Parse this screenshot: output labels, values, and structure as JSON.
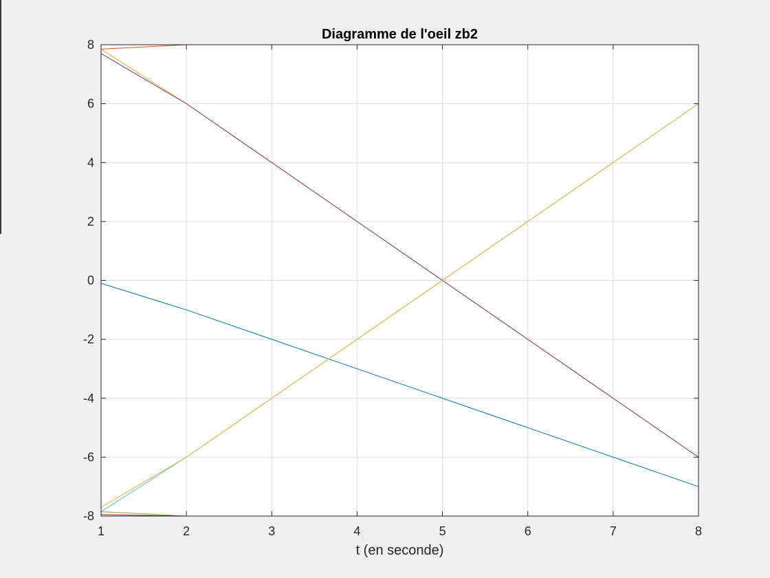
{
  "chart_data": {
    "type": "line",
    "title": "Diagramme de l'oeil zb2",
    "xlabel": "t (en seconde)",
    "ylabel": "",
    "xlim": [
      1,
      8
    ],
    "ylim": [
      -8,
      8
    ],
    "xticks": [
      1,
      2,
      3,
      4,
      5,
      6,
      7,
      8
    ],
    "yticks": [
      -8,
      -6,
      -4,
      -2,
      0,
      2,
      4,
      6,
      8
    ],
    "grid": true,
    "legend": "none",
    "series": [
      {
        "color": "#0072bd",
        "x": [
          1,
          2,
          3,
          4,
          5,
          6,
          7,
          8
        ],
        "y": [
          -0.1,
          -1,
          -2,
          -3,
          -4,
          -5,
          -6,
          -7
        ]
      },
      {
        "color": "#d95319",
        "x": [
          1,
          2,
          3,
          4,
          5,
          6,
          7,
          8
        ],
        "y": [
          7.85,
          8,
          8,
          8,
          8,
          8,
          8,
          8
        ]
      },
      {
        "color": "#edb120",
        "x": [
          1,
          2,
          3,
          4,
          5,
          6,
          7,
          8
        ],
        "y": [
          7.85,
          6,
          4,
          2,
          0,
          -2,
          -4,
          -6
        ]
      },
      {
        "color": "#7e2f8e",
        "x": [
          1,
          2,
          3,
          4,
          5,
          6,
          7,
          8
        ],
        "y": [
          7.7,
          6,
          4,
          2,
          0,
          -2,
          -4,
          -6
        ]
      },
      {
        "color": "#4dbeee",
        "x": [
          1,
          2,
          3,
          4,
          5,
          6,
          7,
          8
        ],
        "y": [
          -7.85,
          -6,
          -4,
          -2,
          0,
          2,
          4,
          6
        ]
      },
      {
        "color": "#edb120",
        "x": [
          1,
          2,
          3,
          4,
          5,
          6,
          7,
          8
        ],
        "y": [
          -7.7,
          -6,
          -4,
          -2,
          0,
          2,
          4,
          6
        ]
      },
      {
        "color": "#77ac30",
        "x": [
          1,
          2,
          3,
          4,
          5,
          6,
          7,
          8
        ],
        "y": [
          -7.85,
          -8,
          -8,
          -8,
          -8,
          -8,
          -8,
          -8
        ]
      },
      {
        "color": "#a2142f",
        "x": [
          1,
          2,
          3,
          4,
          5,
          6,
          7,
          8
        ],
        "y": [
          -7.95,
          -8,
          -8,
          -8,
          -8,
          -8,
          -8,
          -8
        ]
      }
    ]
  }
}
